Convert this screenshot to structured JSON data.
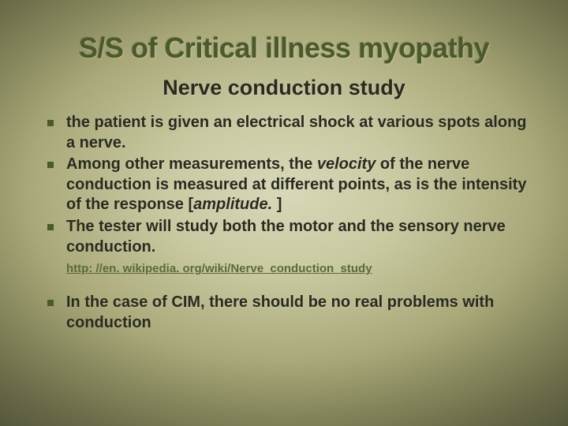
{
  "colors": {
    "title_color": "#4a5a2a",
    "text_color": "#2a2a20",
    "bullet_color": "#4a5a2a",
    "link_color": "#5a6a38",
    "bg_center": "#d8d8b8",
    "bg_mid": "#a8a878",
    "bg_edge": "#404030"
  },
  "typography": {
    "title_fontsize": 36,
    "subtitle_fontsize": 27,
    "body_fontsize": 20,
    "link_fontsize": 15,
    "font_family": "Verdana"
  },
  "title": "S/S of Critical illness myopathy",
  "subtitle": "Nerve conduction study",
  "bullets_a": [
    {
      "pre": "the patient is given an electrical shock at various spots along a nerve.",
      "italic1": "",
      "mid": "",
      "italic2": "",
      "post": ""
    },
    {
      "pre": "Among other measurements, the ",
      "italic1": "velocity",
      "mid": " of the nerve conduction is measured at different points, as is the intensity of the response [",
      "italic2": "amplitude.",
      "post": " ]"
    },
    {
      "pre": "The tester will study both the motor and the sensory nerve conduction.",
      "italic1": "",
      "mid": "",
      "italic2": "",
      "post": ""
    }
  ],
  "link_text": "http: //en. wikipedia. org/wiki/Nerve_conduction_study",
  "bullets_b": [
    {
      "pre": "In the case of CIM, there should be no real problems with conduction",
      "italic1": "",
      "mid": "",
      "italic2": "",
      "post": ""
    }
  ]
}
